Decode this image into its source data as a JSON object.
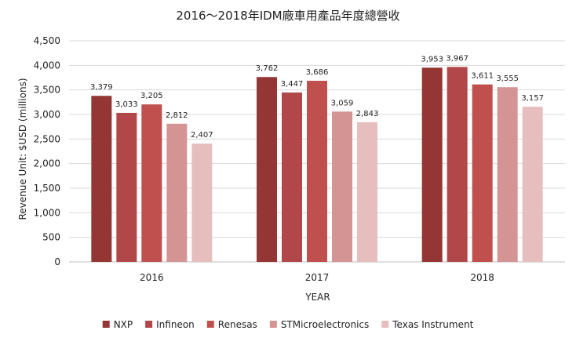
{
  "chart_data": {
    "type": "bar",
    "title": "2016～2018年IDM廠車用產品年度總營收",
    "xlabel": "YEAR",
    "ylabel": "Revenue Unit: $USD (millions)",
    "categories": [
      "2016",
      "2017",
      "2018"
    ],
    "ylim": [
      0,
      4500
    ],
    "yticks": [
      0,
      500,
      1000,
      1500,
      2000,
      2500,
      3000,
      3500,
      4000,
      4500
    ],
    "ytick_labels": [
      "0",
      "500",
      "1,000",
      "1,500",
      "2,000",
      "2,500",
      "3,000",
      "3,500",
      "4,000",
      "4,500"
    ],
    "grid": true,
    "legend_position": "bottom",
    "series": [
      {
        "name": "NXP",
        "color": "#943634",
        "values": [
          3379,
          3762,
          3953
        ],
        "labels": [
          "3,379",
          "3,762",
          "3,953"
        ]
      },
      {
        "name": "Infineon",
        "color": "#b2474a",
        "values": [
          3033,
          3447,
          3967
        ],
        "labels": [
          "3,033",
          "3,447",
          "3,967"
        ]
      },
      {
        "name": "Renesas",
        "color": "#c0504d",
        "values": [
          3205,
          3686,
          3611
        ],
        "labels": [
          "3,205",
          "3,686",
          "3,611"
        ]
      },
      {
        "name": "STMicroelectronics",
        "color": "#d49493",
        "values": [
          2812,
          3059,
          3555
        ],
        "labels": [
          "2,812",
          "3,059",
          "3,555"
        ]
      },
      {
        "name": "Texas Instrument",
        "color": "#e6bebe",
        "values": [
          2407,
          2843,
          3157
        ],
        "labels": [
          "2,407",
          "2,843",
          "3,157"
        ]
      }
    ]
  }
}
